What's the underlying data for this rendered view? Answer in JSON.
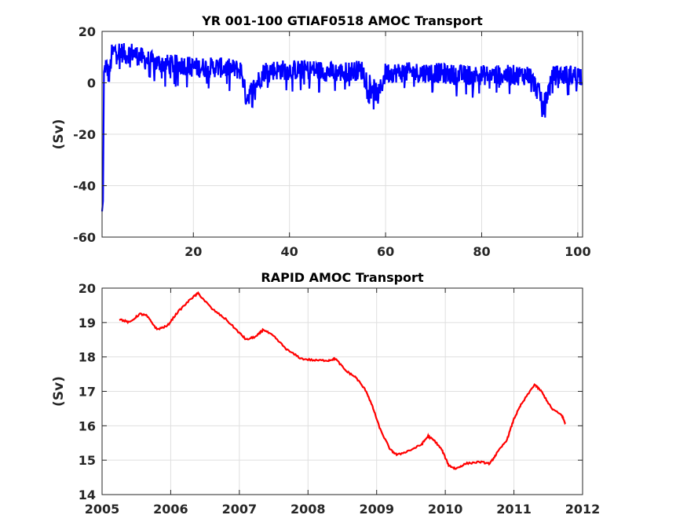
{
  "chart_data": [
    {
      "type": "line",
      "title": "YR 001-100 GTIAF0518 AMOC Transport",
      "xlabel": "",
      "ylabel": "(Sv)",
      "xlim": [
        1,
        101
      ],
      "ylim": [
        -60,
        20
      ],
      "xticks": [
        20,
        40,
        60,
        80,
        100
      ],
      "yticks": [
        20,
        0,
        -20,
        -40,
        -60
      ],
      "grid": true,
      "color": "#0000ff",
      "series": [
        {
          "name": "",
          "x": [
            1.0,
            1.2,
            1.4,
            1.7,
            2.0,
            2.5,
            3.0,
            3.5,
            4.0,
            5.0,
            6.0,
            7.0,
            8.0,
            9.0,
            10.0,
            12.0,
            15.0,
            18.0,
            20.0,
            25.0,
            30.0,
            31.0,
            35.0,
            40.0,
            45.0,
            50.0,
            55.0,
            58.5,
            60.0,
            65.0,
            70.0,
            75.0,
            80.0,
            85.0,
            90.0,
            93.0,
            95.0,
            100.0,
            100.8
          ],
          "y": [
            -50,
            -46,
            3,
            7,
            6,
            2,
            11,
            12,
            13,
            12,
            11,
            12,
            11,
            10,
            9,
            8,
            7,
            7,
            6,
            6,
            5,
            -6,
            5,
            5,
            5,
            4,
            5,
            -5,
            4,
            4,
            4,
            3,
            3,
            3,
            3,
            -8,
            3,
            3,
            3
          ],
          "noise_amplitude": 4
        }
      ]
    },
    {
      "type": "line",
      "title": "RAPID AMOC Transport",
      "xlabel": "",
      "ylabel": "(Sv)",
      "xlim": [
        2005,
        2012
      ],
      "ylim": [
        14,
        20
      ],
      "xticks": [
        2005,
        2006,
        2007,
        2008,
        2009,
        2010,
        2011,
        2012
      ],
      "yticks": [
        20,
        19,
        18,
        17,
        16,
        15,
        14
      ],
      "grid": true,
      "color": "#ff0000",
      "series": [
        {
          "name": "",
          "x": [
            2005.25,
            2005.4,
            2005.55,
            2005.65,
            2005.8,
            2005.95,
            2006.1,
            2006.3,
            2006.4,
            2006.6,
            2006.8,
            2007.0,
            2007.1,
            2007.25,
            2007.35,
            2007.5,
            2007.7,
            2007.9,
            2008.1,
            2008.3,
            2008.4,
            2008.55,
            2008.7,
            2008.85,
            2008.95,
            2009.05,
            2009.2,
            2009.3,
            2009.5,
            2009.65,
            2009.75,
            2009.85,
            2009.95,
            2010.05,
            2010.15,
            2010.3,
            2010.5,
            2010.65,
            2010.75,
            2010.9,
            2011.0,
            2011.1,
            2011.3,
            2011.4,
            2011.55,
            2011.7,
            2011.75
          ],
          "y": [
            19.1,
            19.0,
            19.25,
            19.2,
            18.8,
            18.9,
            19.3,
            19.7,
            19.85,
            19.4,
            19.1,
            18.7,
            18.5,
            18.6,
            18.8,
            18.6,
            18.2,
            17.95,
            17.9,
            17.9,
            17.95,
            17.6,
            17.4,
            17.0,
            16.5,
            15.9,
            15.3,
            15.15,
            15.3,
            15.45,
            15.7,
            15.55,
            15.3,
            14.85,
            14.75,
            14.9,
            14.95,
            14.9,
            15.2,
            15.6,
            16.2,
            16.6,
            17.2,
            17.0,
            16.5,
            16.3,
            16.05
          ]
        }
      ]
    }
  ]
}
